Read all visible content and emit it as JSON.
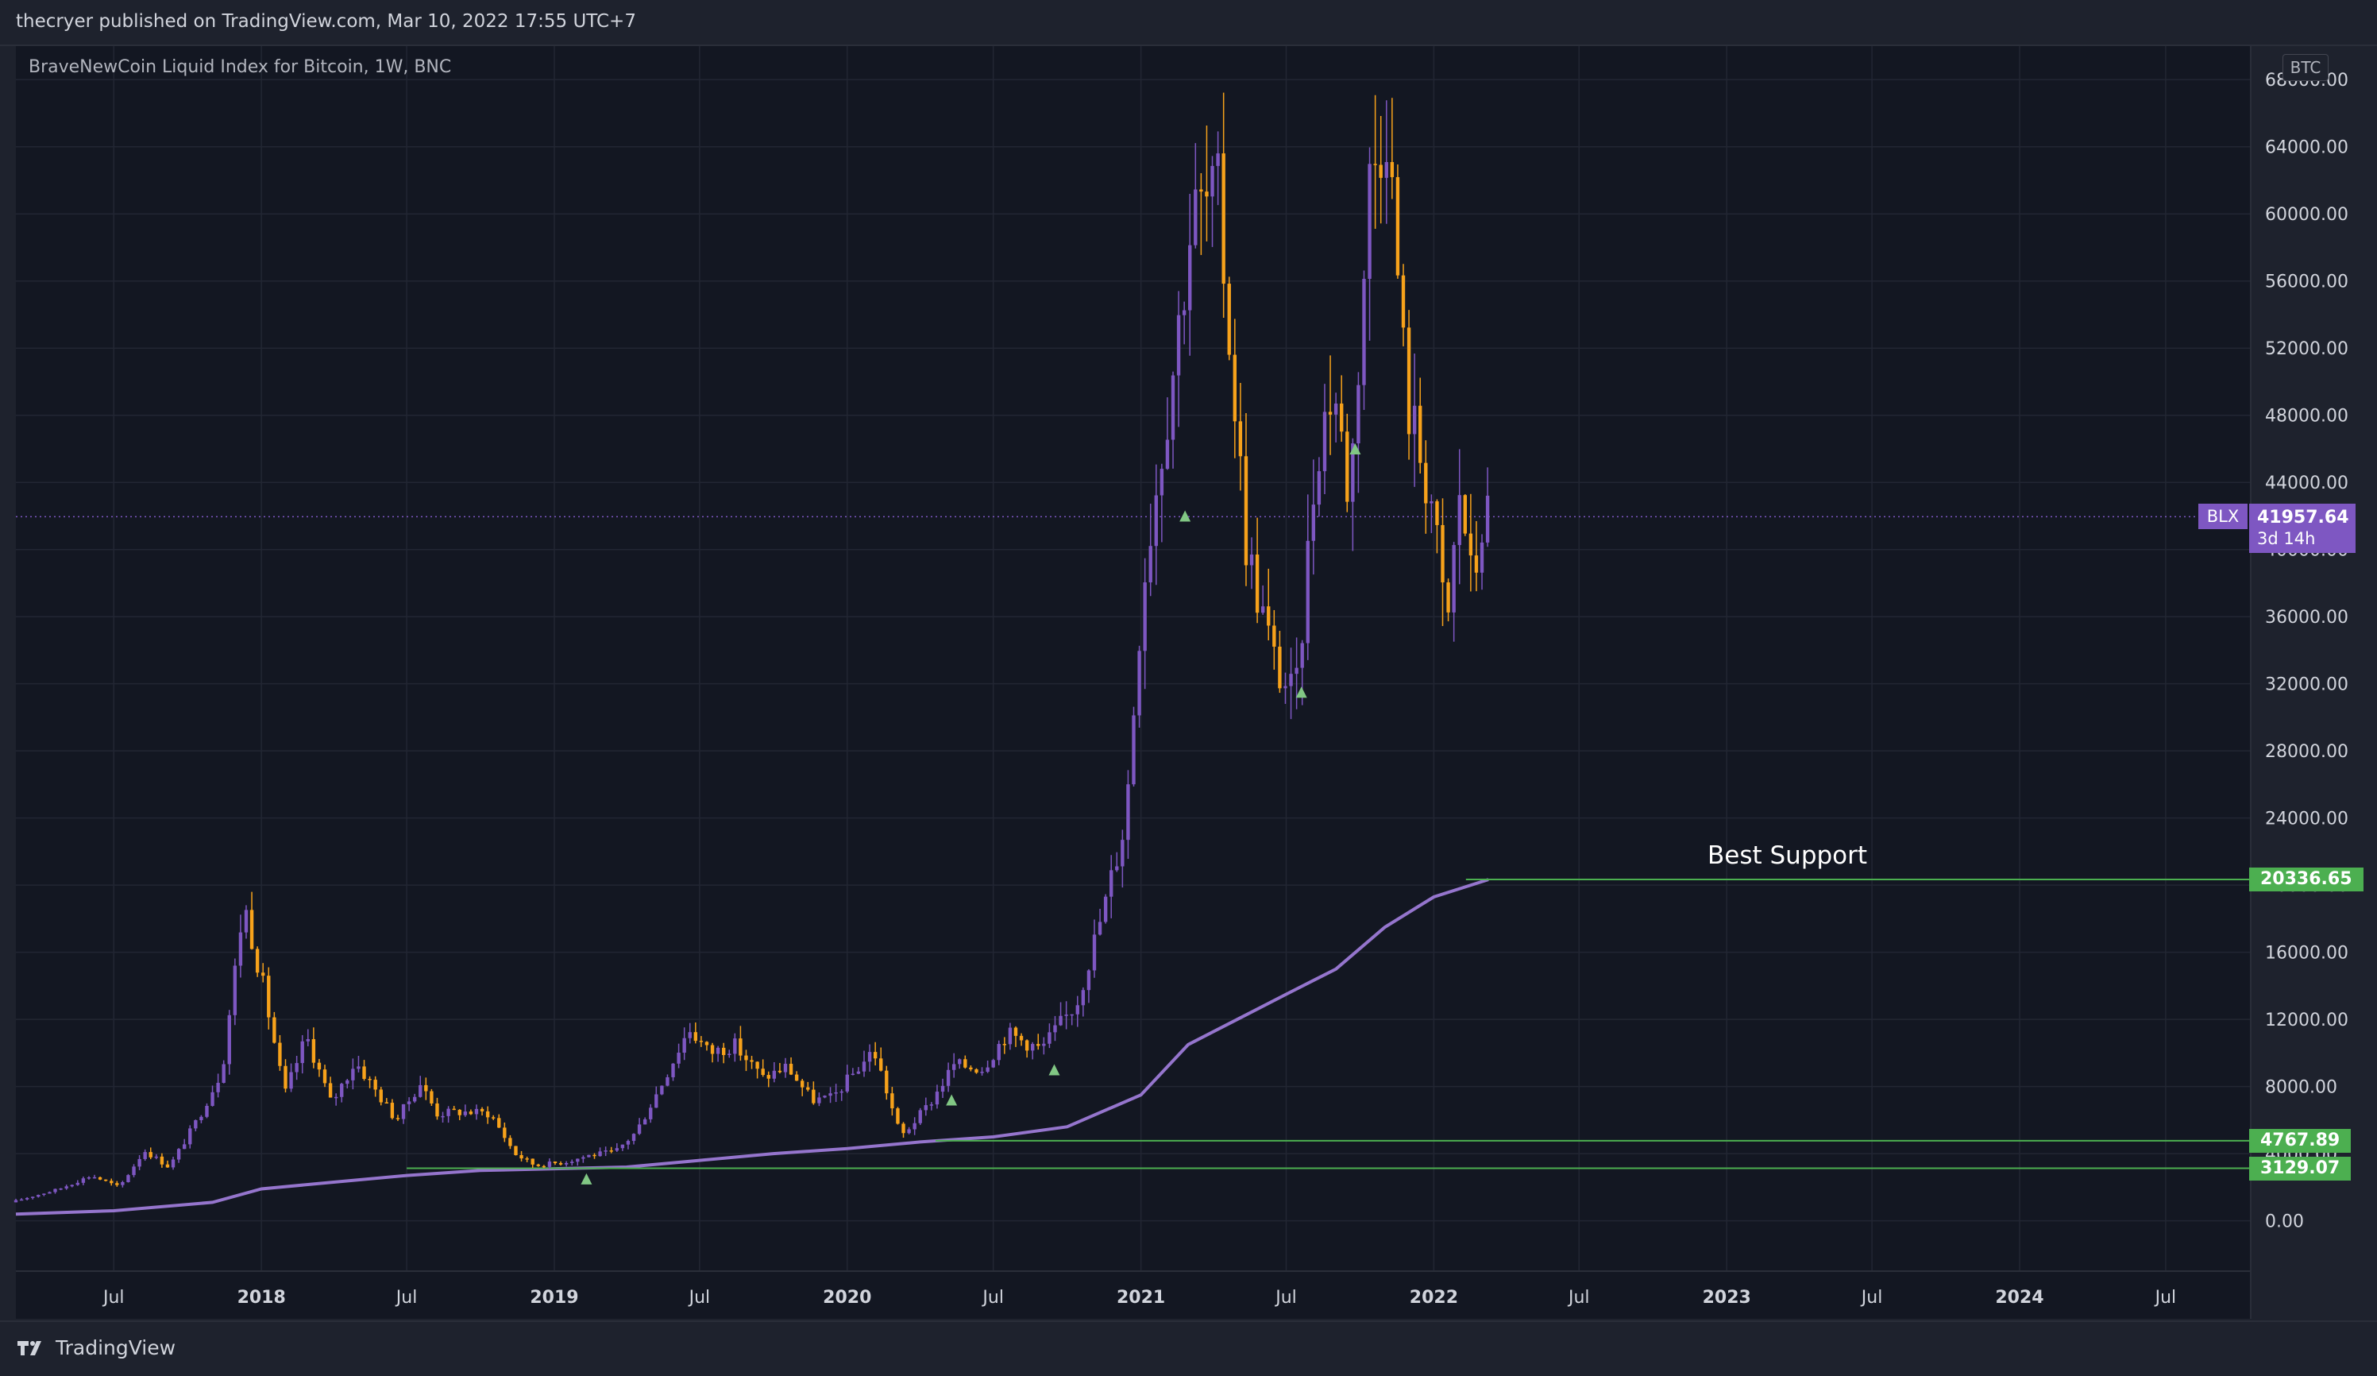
{
  "header": {
    "publisher": "thecryer published on TradingView.com, Mar 10, 2022 17:55 UTC+7"
  },
  "footer": {
    "brand": "TradingView"
  },
  "colors": {
    "background": "#131722",
    "grid": "#222633",
    "candle_up": "#7e57c2",
    "candle_down": "#f7a21b",
    "ma_line": "#9575cd",
    "support_line": "#4caf50",
    "marker": "#81c784"
  },
  "chart_data": {
    "type": "candlestick",
    "title": "BraveNewCoin Liquid Index for Bitcoin, 1W, BNC",
    "currency": "BTC",
    "symbol": "BLX",
    "last_price": "41957.64",
    "countdown": "3d 14h",
    "ylim": [
      -3000,
      70000
    ],
    "xlim": [
      "2017-03-01",
      "2024-10-15"
    ],
    "y_ticks": [
      "0.00",
      "4000.00",
      "8000.00",
      "12000.00",
      "16000.00",
      "20000.00",
      "24000.00",
      "28000.00",
      "32000.00",
      "36000.00",
      "40000.00",
      "44000.00",
      "48000.00",
      "52000.00",
      "56000.00",
      "60000.00",
      "64000.00",
      "68000.00"
    ],
    "x_ticks": [
      {
        "label": "Jul",
        "date": "2017-07-01"
      },
      {
        "label": "2018",
        "date": "2018-01-01"
      },
      {
        "label": "Jul",
        "date": "2018-07-01"
      },
      {
        "label": "2019",
        "date": "2019-01-01"
      },
      {
        "label": "Jul",
        "date": "2019-07-01"
      },
      {
        "label": "2020",
        "date": "2020-01-01"
      },
      {
        "label": "Jul",
        "date": "2020-07-01"
      },
      {
        "label": "2021",
        "date": "2021-01-01"
      },
      {
        "label": "Jul",
        "date": "2021-07-01"
      },
      {
        "label": "2022",
        "date": "2022-01-01"
      },
      {
        "label": "Jul",
        "date": "2022-07-01"
      },
      {
        "label": "2023",
        "date": "2023-01-01"
      },
      {
        "label": "Jul",
        "date": "2023-07-01"
      },
      {
        "label": "2024",
        "date": "2024-01-01"
      },
      {
        "label": "Jul",
        "date": "2024-07-01"
      }
    ],
    "price_path": [
      [
        "2017-03-01",
        1100
      ],
      [
        "2017-05-01",
        1900
      ],
      [
        "2017-06-10",
        2700
      ],
      [
        "2017-07-15",
        2000
      ],
      [
        "2017-08-15",
        4200
      ],
      [
        "2017-09-15",
        3200
      ],
      [
        "2017-10-20",
        6000
      ],
      [
        "2017-11-20",
        9000
      ],
      [
        "2017-12-17",
        19000
      ],
      [
        "2018-01-10",
        14000
      ],
      [
        "2018-02-06",
        7500
      ],
      [
        "2018-03-05",
        11000
      ],
      [
        "2018-04-05",
        7000
      ],
      [
        "2018-05-05",
        9500
      ],
      [
        "2018-06-25",
        6000
      ],
      [
        "2018-07-25",
        8200
      ],
      [
        "2018-08-15",
        6400
      ],
      [
        "2018-09-15",
        6500
      ],
      [
        "2018-10-20",
        6400
      ],
      [
        "2018-11-20",
        4000
      ],
      [
        "2018-12-15",
        3300
      ],
      [
        "2019-01-20",
        3500
      ],
      [
        "2019-02-20",
        3900
      ],
      [
        "2019-03-25",
        4100
      ],
      [
        "2019-04-20",
        5300
      ],
      [
        "2019-05-20",
        8000
      ],
      [
        "2019-06-25",
        11500
      ],
      [
        "2019-07-20",
        10000
      ],
      [
        "2019-08-20",
        10500
      ],
      [
        "2019-09-25",
        8500
      ],
      [
        "2019-10-25",
        9200
      ],
      [
        "2019-11-25",
        7200
      ],
      [
        "2019-12-20",
        7300
      ],
      [
        "2020-02-10",
        10200
      ],
      [
        "2020-03-15",
        5000
      ],
      [
        "2020-04-20",
        7000
      ],
      [
        "2020-05-20",
        9300
      ],
      [
        "2020-06-25",
        9100
      ],
      [
        "2020-07-25",
        11200
      ],
      [
        "2020-09-05",
        10200
      ],
      [
        "2020-10-20",
        13000
      ],
      [
        "2020-11-25",
        19000
      ],
      [
        "2020-12-20",
        24000
      ],
      [
        "2021-01-10",
        38000
      ],
      [
        "2021-02-20",
        52000
      ],
      [
        "2021-03-13",
        60000
      ],
      [
        "2021-04-14",
        61000
      ],
      [
        "2021-05-20",
        40000
      ],
      [
        "2021-06-25",
        33000
      ],
      [
        "2021-07-20",
        31000
      ],
      [
        "2021-08-15",
        46000
      ],
      [
        "2021-09-05",
        50000
      ],
      [
        "2021-09-25",
        43000
      ],
      [
        "2021-10-20",
        62000
      ],
      [
        "2021-11-10",
        66000
      ],
      [
        "2021-12-05",
        49000
      ],
      [
        "2022-01-05",
        43000
      ],
      [
        "2022-01-24",
        35000
      ],
      [
        "2022-02-10",
        44000
      ],
      [
        "2022-02-25",
        37500
      ],
      [
        "2022-03-10",
        41957.64
      ]
    ],
    "moving_average": [
      [
        "2017-03-01",
        400
      ],
      [
        "2017-07-01",
        600
      ],
      [
        "2017-11-01",
        1100
      ],
      [
        "2018-01-01",
        1900
      ],
      [
        "2018-04-01",
        2300
      ],
      [
        "2018-07-01",
        2700
      ],
      [
        "2018-10-01",
        3000
      ],
      [
        "2019-01-01",
        3100
      ],
      [
        "2019-04-01",
        3200
      ],
      [
        "2019-07-01",
        3600
      ],
      [
        "2019-10-01",
        4000
      ],
      [
        "2020-01-01",
        4300
      ],
      [
        "2020-04-01",
        4700
      ],
      [
        "2020-07-01",
        5000
      ],
      [
        "2020-10-01",
        5600
      ],
      [
        "2021-01-01",
        7500
      ],
      [
        "2021-03-01",
        10500
      ],
      [
        "2021-05-01",
        12000
      ],
      [
        "2021-07-01",
        13500
      ],
      [
        "2021-09-01",
        15000
      ],
      [
        "2021-11-01",
        17500
      ],
      [
        "2022-01-01",
        19300
      ],
      [
        "2022-03-10",
        20336
      ]
    ],
    "horizontal_levels": [
      {
        "value": "20336.65",
        "from": "2022-02-10",
        "label": "Best Support"
      },
      {
        "value": "4767.89",
        "from": "2020-04-20"
      },
      {
        "value": "3129.07",
        "from": "2018-07-01"
      }
    ],
    "markers": [
      {
        "date": "2019-02-10",
        "value": 2500
      },
      {
        "date": "2020-05-10",
        "value": 7200
      },
      {
        "date": "2020-09-15",
        "value": 9000
      },
      {
        "date": "2021-02-25",
        "value": 42000
      },
      {
        "date": "2021-07-20",
        "value": 31500
      },
      {
        "date": "2021-09-25",
        "value": 46000
      }
    ],
    "volatility_seed": 17
  }
}
